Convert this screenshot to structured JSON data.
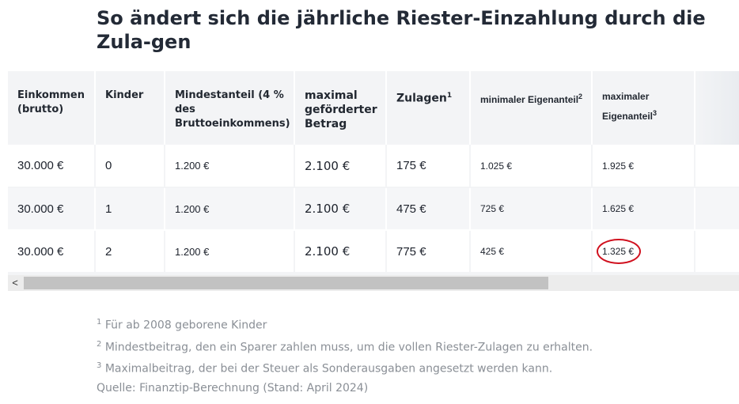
{
  "title": "So ändert sich die jährliche Riester-Einzahlung durch die Zula-gen",
  "table": {
    "headers": {
      "einkommen": "Einkommen (brutto)",
      "kinder": "Kinder",
      "mindestanteil": "Mindestanteil (4 % des Bruttoeinkommens)",
      "maximal": "maximal geförderter Betrag",
      "zulagen": "Zulagen",
      "zulagen_sup": "1",
      "min_eigen": "minimaler Eigenanteil",
      "min_eigen_sup": "2",
      "max_eigen": "maximaler Eigenanteil",
      "max_eigen_sup": "3"
    },
    "rows": [
      {
        "einkommen": "30.000 €",
        "kinder": "0",
        "mindestanteil": "1.200 €",
        "maximal": "2.100 €",
        "zulagen": "175 €",
        "min_eigen": "1.025 €",
        "max_eigen": "1.925 €"
      },
      {
        "einkommen": "30.000 €",
        "kinder": "1",
        "mindestanteil": "1.200 €",
        "maximal": "2.100 €",
        "zulagen": "475 €",
        "min_eigen": "725 €",
        "max_eigen": "1.625 €"
      },
      {
        "einkommen": "30.000 €",
        "kinder": "2",
        "mindestanteil": "1.200 €",
        "maximal": "2.100 €",
        "zulagen": "775 €",
        "min_eigen": "425 €",
        "max_eigen": "1.325 €"
      }
    ]
  },
  "scrollbar": {
    "left_arrow": "<",
    "thumb_fraction": 0.72
  },
  "notes": [
    {
      "sup": "1",
      "text": " Für ab 2008 geborene Kinder"
    },
    {
      "sup": "2",
      "text": " Mindestbeitrag, den ein Sparer zahlen muss, um die vollen Riester-Zulagen zu erhalten."
    },
    {
      "sup": "3",
      "text": " Maximalbeitrag, der bei der Steuer als Sonderausgaben angesetzt werden kann."
    }
  ],
  "source": "Quelle: Finanztip-Berechnung (Stand: April 2024)",
  "colors": {
    "highlight_circle": "#d0101e",
    "note_text": "#8a8f96",
    "header_bg": "#f3f4f6"
  }
}
